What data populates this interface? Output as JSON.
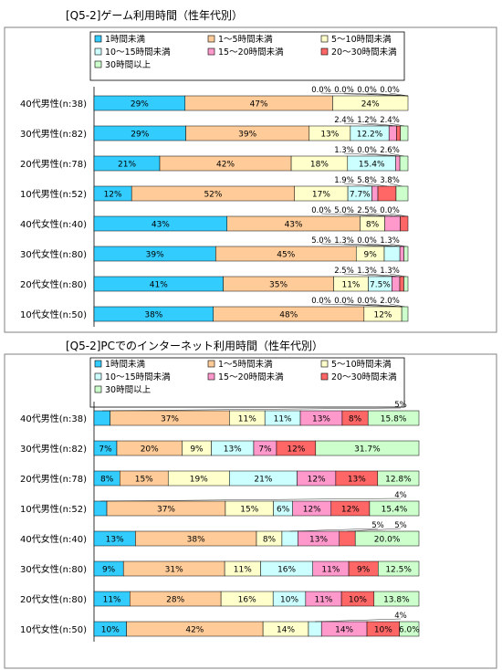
{
  "chart_data": [
    {
      "type": "bar",
      "stacked": true,
      "orientation": "horizontal",
      "percent_stacked": true,
      "title": "[Q5-2]ゲーム利用時間（性年代別）",
      "xlim": [
        0,
        100
      ],
      "legend_position": "top",
      "legend": [
        "1時間未満",
        "1～5時間未満",
        "5～10時間未満",
        "10～15時間未満",
        "15～20時間未満",
        "20～30時間未満",
        "30時間以上"
      ],
      "colors": [
        "#33ccff",
        "#ffcc99",
        "#ffffcc",
        "#ccffff",
        "#ff99cc",
        "#ff6666",
        "#ccffcc"
      ],
      "categories": [
        "40代男性(n:38)",
        "30代男性(n:82)",
        "20代男性(n:78)",
        "10代男性(n:52)",
        "40代女性(n:40)",
        "30代女性(n:80)",
        "20代女性(n:80)",
        "10代女性(n:50)"
      ],
      "series": [
        {
          "name": "1時間未満",
          "values": [
            29,
            29,
            21,
            12,
            43,
            39,
            41,
            38
          ]
        },
        {
          "name": "1～5時間未満",
          "values": [
            47,
            39,
            42,
            52,
            43,
            45,
            35,
            48
          ]
        },
        {
          "name": "5～10時間未満",
          "values": [
            24,
            13,
            18,
            17,
            8,
            9,
            11,
            12
          ]
        },
        {
          "name": "10～15時間未満",
          "values": [
            0.0,
            12.2,
            15.4,
            7.7,
            0.0,
            5.0,
            7.5,
            0.0
          ]
        },
        {
          "name": "15～20時間未満",
          "values": [
            0.0,
            2.4,
            1.3,
            1.9,
            5.0,
            1.3,
            2.5,
            0.0
          ]
        },
        {
          "name": "20～30時間未満",
          "values": [
            0.0,
            1.2,
            0.0,
            5.8,
            2.5,
            0.0,
            1.3,
            0.0
          ]
        },
        {
          "name": "30時間以上",
          "values": [
            0.0,
            2.4,
            2.6,
            3.8,
            0.0,
            1.3,
            1.3,
            2.0
          ]
        }
      ],
      "labels": [
        [
          "29%",
          "47%",
          "24%",
          "0.0%",
          "0.0%",
          "0.0%",
          "0.0%"
        ],
        [
          "29%",
          "39%",
          "13%",
          "12.2%",
          "2.4%",
          "1.2%",
          "2.4%"
        ],
        [
          "21%",
          "42%",
          "18%",
          "15.4%",
          "1.3%",
          "0.0%",
          "2.6%"
        ],
        [
          "12%",
          "52%",
          "17%",
          "7.7%",
          "1.9%",
          "5.8%",
          "3.8%"
        ],
        [
          "43%",
          "43%",
          "8%",
          "0.0%",
          "5.0%",
          "2.5%",
          "0.0%"
        ],
        [
          "39%",
          "45%",
          "9%",
          "5.0%",
          "1.3%",
          "0.0%",
          "1.3%"
        ],
        [
          "41%",
          "35%",
          "11%",
          "7.5%",
          "2.5%",
          "1.3%",
          "1.3%"
        ],
        [
          "38%",
          "48%",
          "12%",
          "0.0%",
          "0.0%",
          "0.0%",
          "2.0%"
        ]
      ]
    },
    {
      "type": "bar",
      "stacked": true,
      "orientation": "horizontal",
      "percent_stacked": true,
      "title": "[Q5-2]PCでのインターネット利用時間（性年代別）",
      "xlim": [
        0,
        100
      ],
      "legend_position": "top",
      "legend": [
        "1時間未満",
        "1～5時間未満",
        "5～10時間未満",
        "10～15時間未満",
        "15～20時間未満",
        "20～30時間未満",
        "30時間以上"
      ],
      "colors": [
        "#33ccff",
        "#ffcc99",
        "#ffffcc",
        "#ccffff",
        "#ff99cc",
        "#ff6666",
        "#ccffcc"
      ],
      "categories": [
        "40代男性(n:38)",
        "30代男性(n:82)",
        "20代男性(n:78)",
        "10代男性(n:52)",
        "40代女性(n:40)",
        "30代女性(n:80)",
        "20代女性(n:80)",
        "10代女性(n:50)"
      ],
      "series": [
        {
          "name": "1時間未満",
          "values": [
            5,
            7,
            8,
            4,
            13,
            9,
            11,
            10
          ]
        },
        {
          "name": "1～5時間未満",
          "values": [
            37,
            20,
            15,
            37,
            38,
            31,
            28,
            42
          ]
        },
        {
          "name": "5～10時間未満",
          "values": [
            11,
            9,
            19,
            15,
            8,
            11,
            16,
            14
          ]
        },
        {
          "name": "10～15時間未満",
          "values": [
            11,
            13,
            21,
            6,
            5,
            16,
            10,
            4
          ]
        },
        {
          "name": "15～20時間未満",
          "values": [
            13,
            7,
            12,
            12,
            13,
            11,
            11,
            14
          ]
        },
        {
          "name": "20～30時間未満",
          "values": [
            8,
            12,
            13,
            12,
            5,
            9,
            10,
            10
          ]
        },
        {
          "name": "30時間以上",
          "values": [
            15.8,
            31.7,
            12.8,
            15.4,
            20.0,
            12.5,
            13.8,
            6.0
          ]
        }
      ],
      "labels": [
        [
          "5%",
          "37%",
          "11%",
          "11%",
          "13%",
          "8%",
          "15.8%"
        ],
        [
          "7%",
          "20%",
          "9%",
          "13%",
          "7%",
          "12%",
          "31.7%"
        ],
        [
          "8%",
          "15%",
          "19%",
          "21%",
          "12%",
          "13%",
          "12.8%"
        ],
        [
          "4%",
          "37%",
          "15%",
          "6%",
          "12%",
          "12%",
          "15.4%"
        ],
        [
          "13%",
          "38%",
          "8%",
          "5%",
          "13%",
          "5%",
          "20.0%"
        ],
        [
          "9%",
          "31%",
          "11%",
          "16%",
          "11%",
          "9%",
          "12.5%"
        ],
        [
          "11%",
          "28%",
          "16%",
          "10%",
          "11%",
          "10%",
          "13.8%"
        ],
        [
          "10%",
          "42%",
          "14%",
          "4%",
          "14%",
          "10%",
          "6.0%"
        ]
      ]
    }
  ]
}
